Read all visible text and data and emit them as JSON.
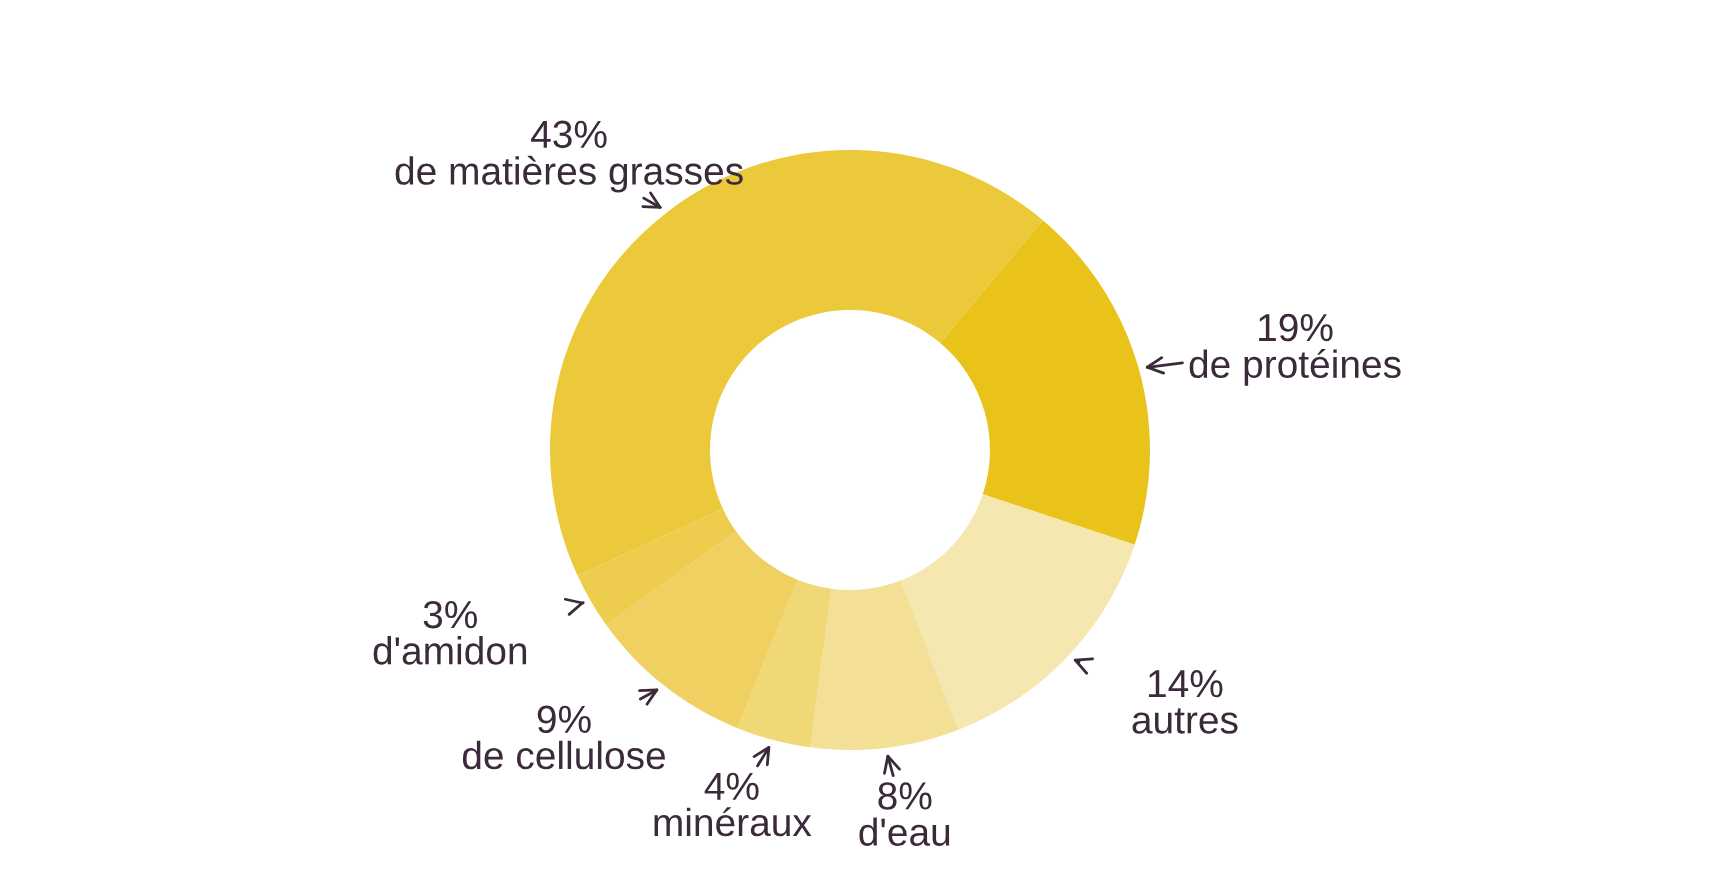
{
  "chart_data": {
    "type": "donut",
    "categories": [
      "de protéines",
      "autres",
      "d'eau",
      "minéraux",
      "de cellulose",
      "d'amidon",
      "de matières grasses"
    ],
    "values": [
      19,
      14,
      8,
      4,
      9,
      3,
      43
    ],
    "value_labels": [
      "19%",
      "14%",
      "8%",
      "4%",
      "9%",
      "3%",
      "43%"
    ],
    "colors": [
      "#e9c21a",
      "#f5e7b0",
      "#f3df95",
      "#f1d877",
      "#efd060",
      "#edcc4e",
      "#ebc93a"
    ]
  }
}
